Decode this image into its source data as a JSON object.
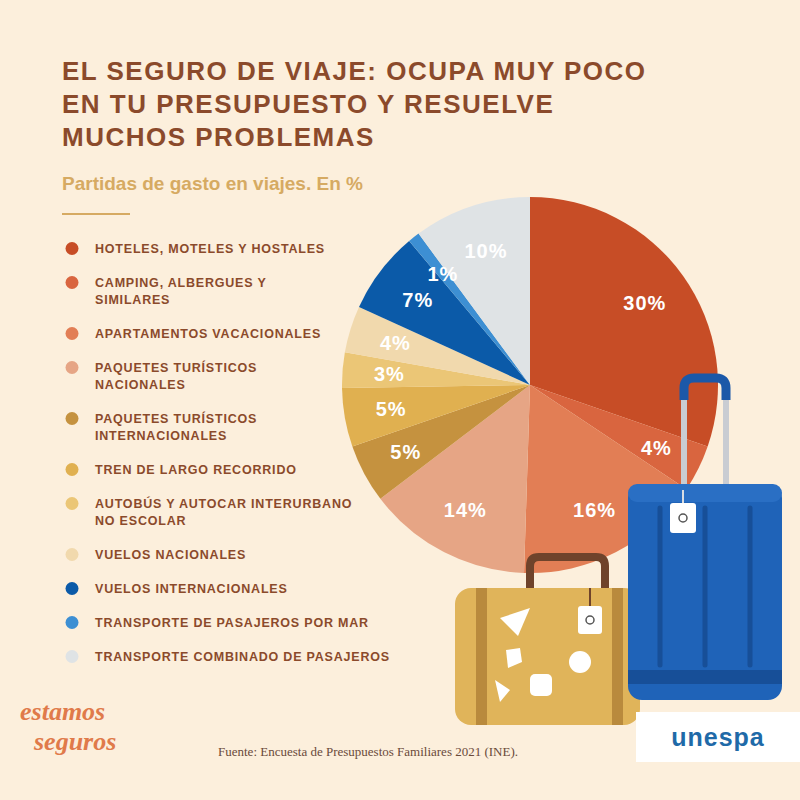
{
  "chart_data": {
    "type": "pie",
    "title": "EL SEGURO DE VIAJE: OCUPA MUY POCO EN TU PRESUPUESTO Y RESUELVE MUCHOS PROBLEMAS",
    "subtitle": "Partidas de gasto en viajes. En %",
    "categories": [
      "HOTELES, MOTELES Y HOSTALES",
      "CAMPING, ALBERGUES Y SIMILARES",
      "APARTAMENTOS VACACIONALES",
      "PAQUETES TURÍSTICOS NACIONALES",
      "PAQUETES TURÍSTICOS INTERNACIONALES",
      "TREN DE LARGO RECORRIDO",
      "AUTOBÚS Y AUTOCAR INTERURBANO NO ESCOLAR",
      "VUELOS NACIONALES",
      "VUELOS INTERNACIONALES",
      "TRANSPORTE DE PASAJEROS POR MAR",
      "TRANSPORTE COMBINADO DE PASAJEROS"
    ],
    "values": [
      30,
      4,
      16,
      14,
      5,
      5,
      3,
      4,
      7,
      1,
      10
    ],
    "value_labels": [
      "30%",
      "4%",
      "16%",
      "14%",
      "5%",
      "5%",
      "3%",
      "4%",
      "7%",
      "1%",
      "10%"
    ],
    "colors": [
      "#c74d26",
      "#d9653f",
      "#e27e55",
      "#e6a585",
      "#c5923f",
      "#e0b050",
      "#ebc676",
      "#f1d9ad",
      "#0b5aa8",
      "#3d8fd3",
      "#dfe3e5"
    ],
    "data_labels": true,
    "legend": "left",
    "source": "Fuente: Encuesta de Presupuestos Familiares 2021 (INE).",
    "brand_lines": [
      "estamos",
      "seguros"
    ],
    "logo": "unespa"
  }
}
